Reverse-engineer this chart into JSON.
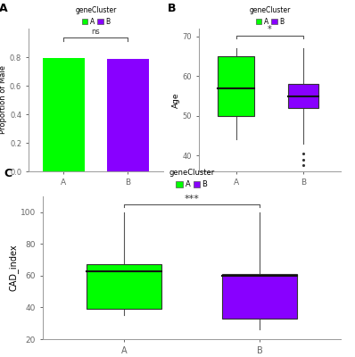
{
  "green_color": "#00FF00",
  "purple_color": "#8800FF",
  "background_color": "#FFFFFF",
  "panel_A": {
    "categories": [
      "A",
      "B"
    ],
    "values": [
      0.795,
      0.785
    ],
    "ylabel": "Proportion of Male",
    "sig_text": "ns",
    "ylim": [
      0,
      1.0
    ],
    "yticks": [
      0.0,
      0.2,
      0.4,
      0.6,
      0.8
    ]
  },
  "panel_B": {
    "categories": [
      "A",
      "B"
    ],
    "ylabel": "Age",
    "sig_text": "*",
    "ylim": [
      36,
      72
    ],
    "yticks": [
      40,
      50,
      60,
      70
    ],
    "box_A": {
      "q1": 50,
      "median": 57,
      "q3": 65,
      "whisker_low": 44,
      "whisker_high": 67
    },
    "box_B": {
      "q1": 52,
      "median": 55,
      "q3": 58,
      "whisker_low": 43,
      "whisker_high": 67,
      "outliers": [
        40.5,
        39.0,
        37.5
      ]
    }
  },
  "panel_C": {
    "categories": [
      "A",
      "B"
    ],
    "ylabel": "CAD_index",
    "sig_text": "***",
    "ylim": [
      20,
      110
    ],
    "yticks": [
      20,
      40,
      60,
      80,
      100
    ],
    "box_A": {
      "q1": 39,
      "median": 63,
      "q3": 67,
      "whisker_low": 35,
      "whisker_high": 100
    },
    "box_B": {
      "q1": 33,
      "median": 60,
      "q3": 61,
      "whisker_low": 26,
      "whisker_high": 100
    }
  },
  "legend_label_A": "A",
  "legend_label_B": "B",
  "legend_title": "geneCluster"
}
